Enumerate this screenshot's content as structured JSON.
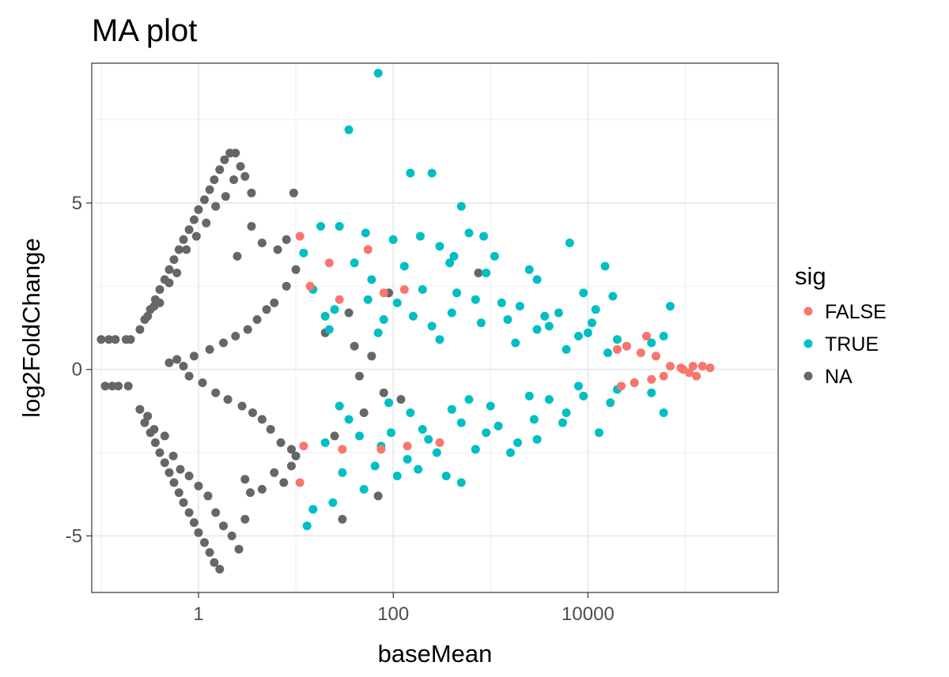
{
  "chart_data": {
    "type": "scatter",
    "title": "MA plot",
    "xlabel": "baseMean",
    "ylabel": "log2FoldChange",
    "x_scale": "log10",
    "xlim": [
      0.08,
      900000
    ],
    "ylim": [
      -6.7,
      9.2
    ],
    "x_ticks": [
      {
        "value": 1,
        "label": "1"
      },
      {
        "value": 100,
        "label": "100"
      },
      {
        "value": 10000,
        "label": "10000"
      }
    ],
    "y_ticks": [
      {
        "value": -5,
        "label": "-5"
      },
      {
        "value": 0,
        "label": "0"
      },
      {
        "value": 5,
        "label": "5"
      }
    ],
    "grid": true,
    "legend": {
      "title": "sig",
      "position": "right",
      "entries": [
        {
          "label": "FALSE",
          "color": "#F8766D"
        },
        {
          "label": "TRUE",
          "color": "#00BFC4"
        },
        {
          "label": "NA",
          "color": "#666666"
        }
      ]
    },
    "series": [
      {
        "name": "NA",
        "color": "#666666",
        "points": [
          [
            0.1,
            0.9
          ],
          [
            0.12,
            0.9
          ],
          [
            0.14,
            0.9
          ],
          [
            0.18,
            0.9
          ],
          [
            0.2,
            0.9
          ],
          [
            0.11,
            -0.5
          ],
          [
            0.13,
            -0.5
          ],
          [
            0.15,
            -0.5
          ],
          [
            0.19,
            -0.5
          ],
          [
            0.25,
            1.2
          ],
          [
            0.28,
            1.5
          ],
          [
            0.32,
            1.8
          ],
          [
            0.36,
            2.1
          ],
          [
            0.4,
            2.4
          ],
          [
            0.45,
            2.7
          ],
          [
            0.5,
            3.0
          ],
          [
            0.56,
            3.3
          ],
          [
            0.63,
            3.6
          ],
          [
            0.7,
            3.9
          ],
          [
            0.8,
            4.2
          ],
          [
            0.9,
            4.5
          ],
          [
            1.0,
            4.8
          ],
          [
            1.15,
            5.1
          ],
          [
            1.3,
            5.4
          ],
          [
            1.45,
            5.7
          ],
          [
            1.65,
            6.0
          ],
          [
            1.85,
            6.3
          ],
          [
            2.1,
            6.5
          ],
          [
            2.4,
            6.5
          ],
          [
            0.3,
            1.6
          ],
          [
            0.35,
            1.9
          ],
          [
            0.4,
            2.0
          ],
          [
            0.5,
            2.6
          ],
          [
            0.6,
            2.9
          ],
          [
            0.75,
            3.6
          ],
          [
            0.95,
            4.0
          ],
          [
            1.2,
            4.4
          ],
          [
            1.5,
            4.9
          ],
          [
            1.9,
            5.2
          ],
          [
            2.3,
            5.7
          ],
          [
            2.7,
            6.1
          ],
          [
            3.0,
            5.8
          ],
          [
            3.5,
            5.3
          ],
          [
            0.25,
            -1.2
          ],
          [
            0.28,
            -1.6
          ],
          [
            0.32,
            -1.9
          ],
          [
            0.36,
            -2.2
          ],
          [
            0.4,
            -2.5
          ],
          [
            0.45,
            -2.8
          ],
          [
            0.5,
            -3.1
          ],
          [
            0.56,
            -3.4
          ],
          [
            0.63,
            -3.7
          ],
          [
            0.7,
            -4.0
          ],
          [
            0.8,
            -4.3
          ],
          [
            0.9,
            -4.6
          ],
          [
            1.0,
            -4.9
          ],
          [
            1.15,
            -5.2
          ],
          [
            1.3,
            -5.5
          ],
          [
            1.45,
            -5.8
          ],
          [
            1.65,
            -6.0
          ],
          [
            0.3,
            -1.4
          ],
          [
            0.35,
            -1.8
          ],
          [
            0.45,
            -2.0
          ],
          [
            0.55,
            -2.6
          ],
          [
            0.65,
            -3.0
          ],
          [
            0.8,
            -3.2
          ],
          [
            1.0,
            -3.5
          ],
          [
            1.25,
            -3.8
          ],
          [
            1.5,
            -4.3
          ],
          [
            1.8,
            -4.7
          ],
          [
            2.2,
            -5.0
          ],
          [
            2.6,
            -5.4
          ],
          [
            3.0,
            -4.5
          ],
          [
            3.4,
            -3.7
          ],
          [
            0.5,
            0.2
          ],
          [
            0.6,
            0.3
          ],
          [
            0.7,
            0.1
          ],
          [
            0.8,
            -0.2
          ],
          [
            0.9,
            0.4
          ],
          [
            1.1,
            -0.4
          ],
          [
            1.3,
            0.6
          ],
          [
            1.5,
            -0.7
          ],
          [
            1.8,
            0.8
          ],
          [
            2.0,
            -0.9
          ],
          [
            2.4,
            1.0
          ],
          [
            2.8,
            -1.1
          ],
          [
            3.2,
            1.2
          ],
          [
            3.6,
            -1.3
          ],
          [
            4.0,
            1.5
          ],
          [
            4.5,
            -1.5
          ],
          [
            5.0,
            1.8
          ],
          [
            5.5,
            -1.8
          ],
          [
            6.0,
            2.0
          ],
          [
            7.0,
            -2.2
          ],
          [
            8.0,
            2.5
          ],
          [
            9.0,
            -2.4
          ],
          [
            9.5,
            5.3
          ],
          [
            10.0,
            3.0
          ],
          [
            10.0,
            -2.6
          ],
          [
            2.5,
            3.4
          ],
          [
            3.5,
            4.3
          ],
          [
            4.5,
            3.8
          ],
          [
            6.5,
            3.6
          ],
          [
            8.0,
            3.9
          ],
          [
            3.0,
            -3.3
          ],
          [
            4.5,
            -3.6
          ],
          [
            6.0,
            -3.1
          ],
          [
            7.5,
            -3.4
          ],
          [
            9.0,
            -2.9
          ],
          [
            30,
            -4.5
          ],
          [
            70,
            -3.8
          ],
          [
            25,
            -2.0
          ],
          [
            35,
            1.7
          ],
          [
            50,
            -1.3
          ],
          [
            40,
            0.7
          ],
          [
            60,
            0.4
          ],
          [
            80,
            -0.7
          ],
          [
            90,
            2.3
          ],
          [
            45,
            -0.2
          ],
          [
            20,
            1.1
          ],
          [
            120,
            -0.9
          ],
          [
            750,
            2.9
          ]
        ]
      },
      {
        "name": "TRUE",
        "color": "#00BFC4",
        "points": [
          [
            70,
            8.9
          ],
          [
            35,
            7.2
          ],
          [
            150,
            5.9
          ],
          [
            250,
            5.9
          ],
          [
            500,
            4.9
          ],
          [
            600,
            4.1
          ],
          [
            850,
            4.0
          ],
          [
            18,
            4.3
          ],
          [
            28,
            4.3
          ],
          [
            52,
            4.1
          ],
          [
            100,
            3.9
          ],
          [
            190,
            4.0
          ],
          [
            300,
            3.7
          ],
          [
            420,
            3.4
          ],
          [
            1100,
            3.4
          ],
          [
            2500,
            3.0
          ],
          [
            6500,
            3.8
          ],
          [
            15000,
            3.1
          ],
          [
            12,
            3.5
          ],
          [
            40,
            3.2
          ],
          [
            130,
            3.1
          ],
          [
            380,
            3.2
          ],
          [
            900,
            2.9
          ],
          [
            3000,
            2.7
          ],
          [
            9000,
            2.3
          ],
          [
            18000,
            2.2
          ],
          [
            15,
            2.4
          ],
          [
            60,
            2.7
          ],
          [
            200,
            2.4
          ],
          [
            700,
            2.1
          ],
          [
            2000,
            1.9
          ],
          [
            5000,
            1.7
          ],
          [
            12000,
            1.8
          ],
          [
            70000,
            1.9
          ],
          [
            20,
            1.6
          ],
          [
            80,
            1.5
          ],
          [
            250,
            1.3
          ],
          [
            800,
            1.4
          ],
          [
            3000,
            1.2
          ],
          [
            8000,
            1.0
          ],
          [
            20000,
            0.9
          ],
          [
            45000,
            0.8
          ],
          [
            60000,
            1.0
          ],
          [
            25,
            1.8
          ],
          [
            110,
            2.0
          ],
          [
            400,
            1.7
          ],
          [
            1500,
            1.5
          ],
          [
            4000,
            1.3
          ],
          [
            10000,
            1.1
          ],
          [
            25000,
            0.7
          ],
          [
            15,
            -4.2
          ],
          [
            13,
            -4.7
          ],
          [
            24,
            -4.0
          ],
          [
            50,
            -3.6
          ],
          [
            110,
            -3.2
          ],
          [
            180,
            -3.0
          ],
          [
            350,
            -3.2
          ],
          [
            500,
            -3.4
          ],
          [
            30,
            -3.1
          ],
          [
            65,
            -2.9
          ],
          [
            140,
            -2.7
          ],
          [
            280,
            -2.5
          ],
          [
            700,
            -2.4
          ],
          [
            1600,
            -2.5
          ],
          [
            3000,
            -2.1
          ],
          [
            20,
            -2.2
          ],
          [
            45,
            -2.0
          ],
          [
            95,
            -1.9
          ],
          [
            200,
            -1.8
          ],
          [
            500,
            -1.6
          ],
          [
            1200,
            -1.7
          ],
          [
            2800,
            -1.5
          ],
          [
            6000,
            -1.3
          ],
          [
            13000,
            -1.9
          ],
          [
            60000,
            -1.3
          ],
          [
            35,
            -1.5
          ],
          [
            150,
            -1.3
          ],
          [
            400,
            -1.2
          ],
          [
            1000,
            -1.1
          ],
          [
            4000,
            -0.9
          ],
          [
            9000,
            -0.8
          ],
          [
            20000,
            -0.6
          ],
          [
            45000,
            -0.7
          ],
          [
            22,
            1.2
          ],
          [
            70,
            1.1
          ],
          [
            300,
            0.9
          ],
          [
            1800,
            0.8
          ],
          [
            6000,
            0.6
          ],
          [
            16000,
            0.5
          ],
          [
            28,
            -1.1
          ],
          [
            90,
            -1.0
          ],
          [
            600,
            -0.9
          ],
          [
            2500,
            -0.8
          ],
          [
            8000,
            -0.5
          ],
          [
            30000,
            -0.4
          ],
          [
            55,
            2.1
          ],
          [
            160,
            1.6
          ],
          [
            450,
            2.3
          ],
          [
            1300,
            2.0
          ],
          [
            3600,
            1.6
          ],
          [
            11000,
            1.4
          ],
          [
            75,
            -2.3
          ],
          [
            230,
            -2.1
          ],
          [
            900,
            -1.9
          ],
          [
            1900,
            -2.2
          ],
          [
            5500,
            -1.6
          ],
          [
            17000,
            -1.0
          ]
        ]
      },
      {
        "name": "FALSE",
        "color": "#F8766D",
        "points": [
          [
            11,
            4.0
          ],
          [
            22,
            3.2
          ],
          [
            55,
            3.6
          ],
          [
            14,
            2.5
          ],
          [
            28,
            2.1
          ],
          [
            80,
            2.3
          ],
          [
            130,
            2.4
          ],
          [
            11,
            -3.4
          ],
          [
            12,
            -2.3
          ],
          [
            30,
            -2.4
          ],
          [
            75,
            -2.4
          ],
          [
            140,
            -2.3
          ],
          [
            300,
            -2.2
          ],
          [
            40000,
            1.0
          ],
          [
            70000,
            0.1
          ],
          [
            90000,
            0.05
          ],
          [
            120000,
            0.1
          ],
          [
            150000,
            0.1
          ],
          [
            180000,
            0.05
          ],
          [
            110000,
            -0.1
          ],
          [
            130000,
            -0.2
          ],
          [
            95000,
            0.0
          ],
          [
            25000,
            0.7
          ],
          [
            35000,
            0.5
          ],
          [
            50000,
            0.4
          ],
          [
            30000,
            -0.4
          ],
          [
            45000,
            -0.3
          ],
          [
            60000,
            -0.2
          ],
          [
            20000,
            0.6
          ],
          [
            22000,
            -0.5
          ]
        ]
      }
    ]
  }
}
